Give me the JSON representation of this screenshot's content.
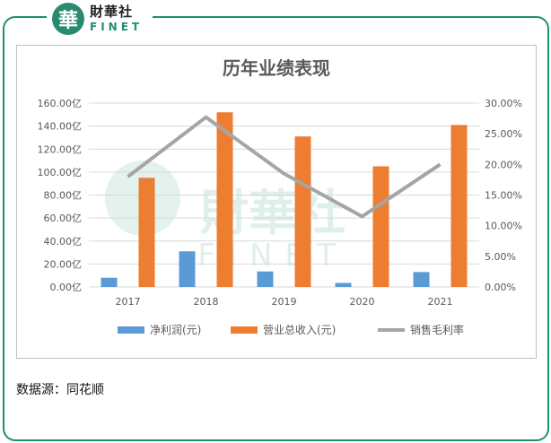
{
  "brand": {
    "seal_char": "華",
    "name_cn": "財華社",
    "name_en": "FINET",
    "color": "#1f8f74"
  },
  "source_text": "数据源：同花顺",
  "chart_data": {
    "type": "bar",
    "title": "历年业绩表现",
    "categories": [
      "2017",
      "2018",
      "2019",
      "2020",
      "2021"
    ],
    "y_left": {
      "ticks": [
        "0.00亿",
        "20.00亿",
        "40.00亿",
        "60.00亿",
        "80.00亿",
        "100.00亿",
        "120.00亿",
        "140.00亿",
        "160.00亿"
      ],
      "min": 0,
      "max": 160
    },
    "y_right": {
      "ticks": [
        "0.00%",
        "5.00%",
        "10.00%",
        "15.00%",
        "20.00%",
        "25.00%",
        "30.00%"
      ],
      "min": 0,
      "max": 30
    },
    "series": [
      {
        "name": "净利润(元)",
        "type": "bar",
        "axis": "left",
        "color": "#5b9bd5",
        "values": [
          8,
          31,
          13.5,
          3.5,
          13
        ]
      },
      {
        "name": "营业总收入(元)",
        "type": "bar",
        "axis": "left",
        "color": "#ed7d31",
        "values": [
          95,
          152,
          131,
          105,
          141
        ]
      },
      {
        "name": "销售毛利率",
        "type": "line",
        "axis": "right",
        "color": "#a5a5a5",
        "values": [
          18.0,
          27.7,
          18.5,
          11.5,
          20.0
        ]
      }
    ],
    "legend_position": "bottom",
    "grid": true
  }
}
